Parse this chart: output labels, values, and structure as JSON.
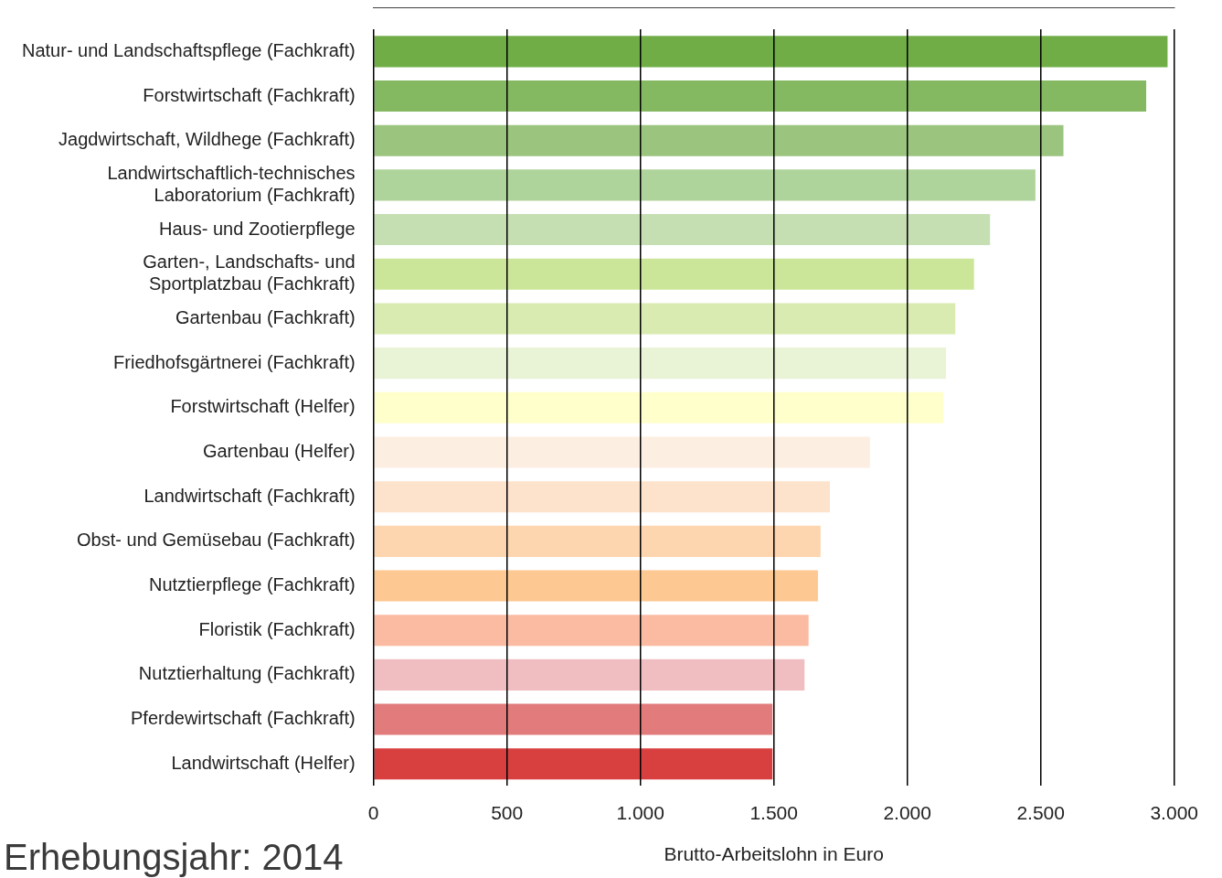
{
  "chart_data": {
    "type": "bar",
    "orientation": "horizontal",
    "xlabel": "Brutto-Arbeitslohn in Euro",
    "annotations": [
      "Erhebungsjahr: 2014"
    ],
    "categories": [
      "Natur- und Landschaftspflege (Fachkraft)",
      "Forstwirtschaft (Fachkraft)",
      "Jagdwirtschaft, Wildhege (Fachkraft)",
      "Landwirtschaftlich-technisches Laboratorium (Fachkraft)",
      "Haus- und Zootierpflege",
      "Garten-, Landschafts- und Sportplatzbau (Fachkraft)",
      "Gartenbau (Fachkraft)",
      "Friedhofsgärtnerei (Fachkraft)",
      "Forstwirtschaft (Helfer)",
      "Gartenbau (Helfer)",
      "Landwirtschaft (Fachkraft)",
      "Obst- und Gemüsebau (Fachkraft)",
      "Nutztierpflege (Fachkraft)",
      "Floristik (Fachkraft)",
      "Nutztierhaltung (Fachkraft)",
      "Pferdewirtschaft (Fachkraft)",
      "Landwirtschaft (Helfer)"
    ],
    "values": [
      2975,
      2895,
      2585,
      2480,
      2310,
      2250,
      2180,
      2145,
      2135,
      1860,
      1710,
      1675,
      1665,
      1630,
      1615,
      1495,
      1495
    ],
    "colors": [
      "#70ad47",
      "#84b962",
      "#9bc57f",
      "#afd49b",
      "#c5dfb3",
      "#cce699",
      "#d9ebb0",
      "#e9f3d6",
      "#ffffcc",
      "#fdeee2",
      "#fde2cc",
      "#fdd5ae",
      "#fdc891",
      "#fbbba2",
      "#f0bdc1",
      "#e27b7b",
      "#d84040"
    ],
    "xlim": [
      0,
      3000
    ],
    "xticks": [
      0,
      500,
      {
        "value": 1000,
        "label": "1.000"
      },
      {
        "value": 1500,
        "label": "1.500"
      },
      {
        "value": 2000,
        "label": "2.000"
      },
      {
        "value": 2500,
        "label": "2.500"
      },
      {
        "value": 3000,
        "label": "3.000"
      }
    ],
    "grid": "x",
    "legend": false
  }
}
